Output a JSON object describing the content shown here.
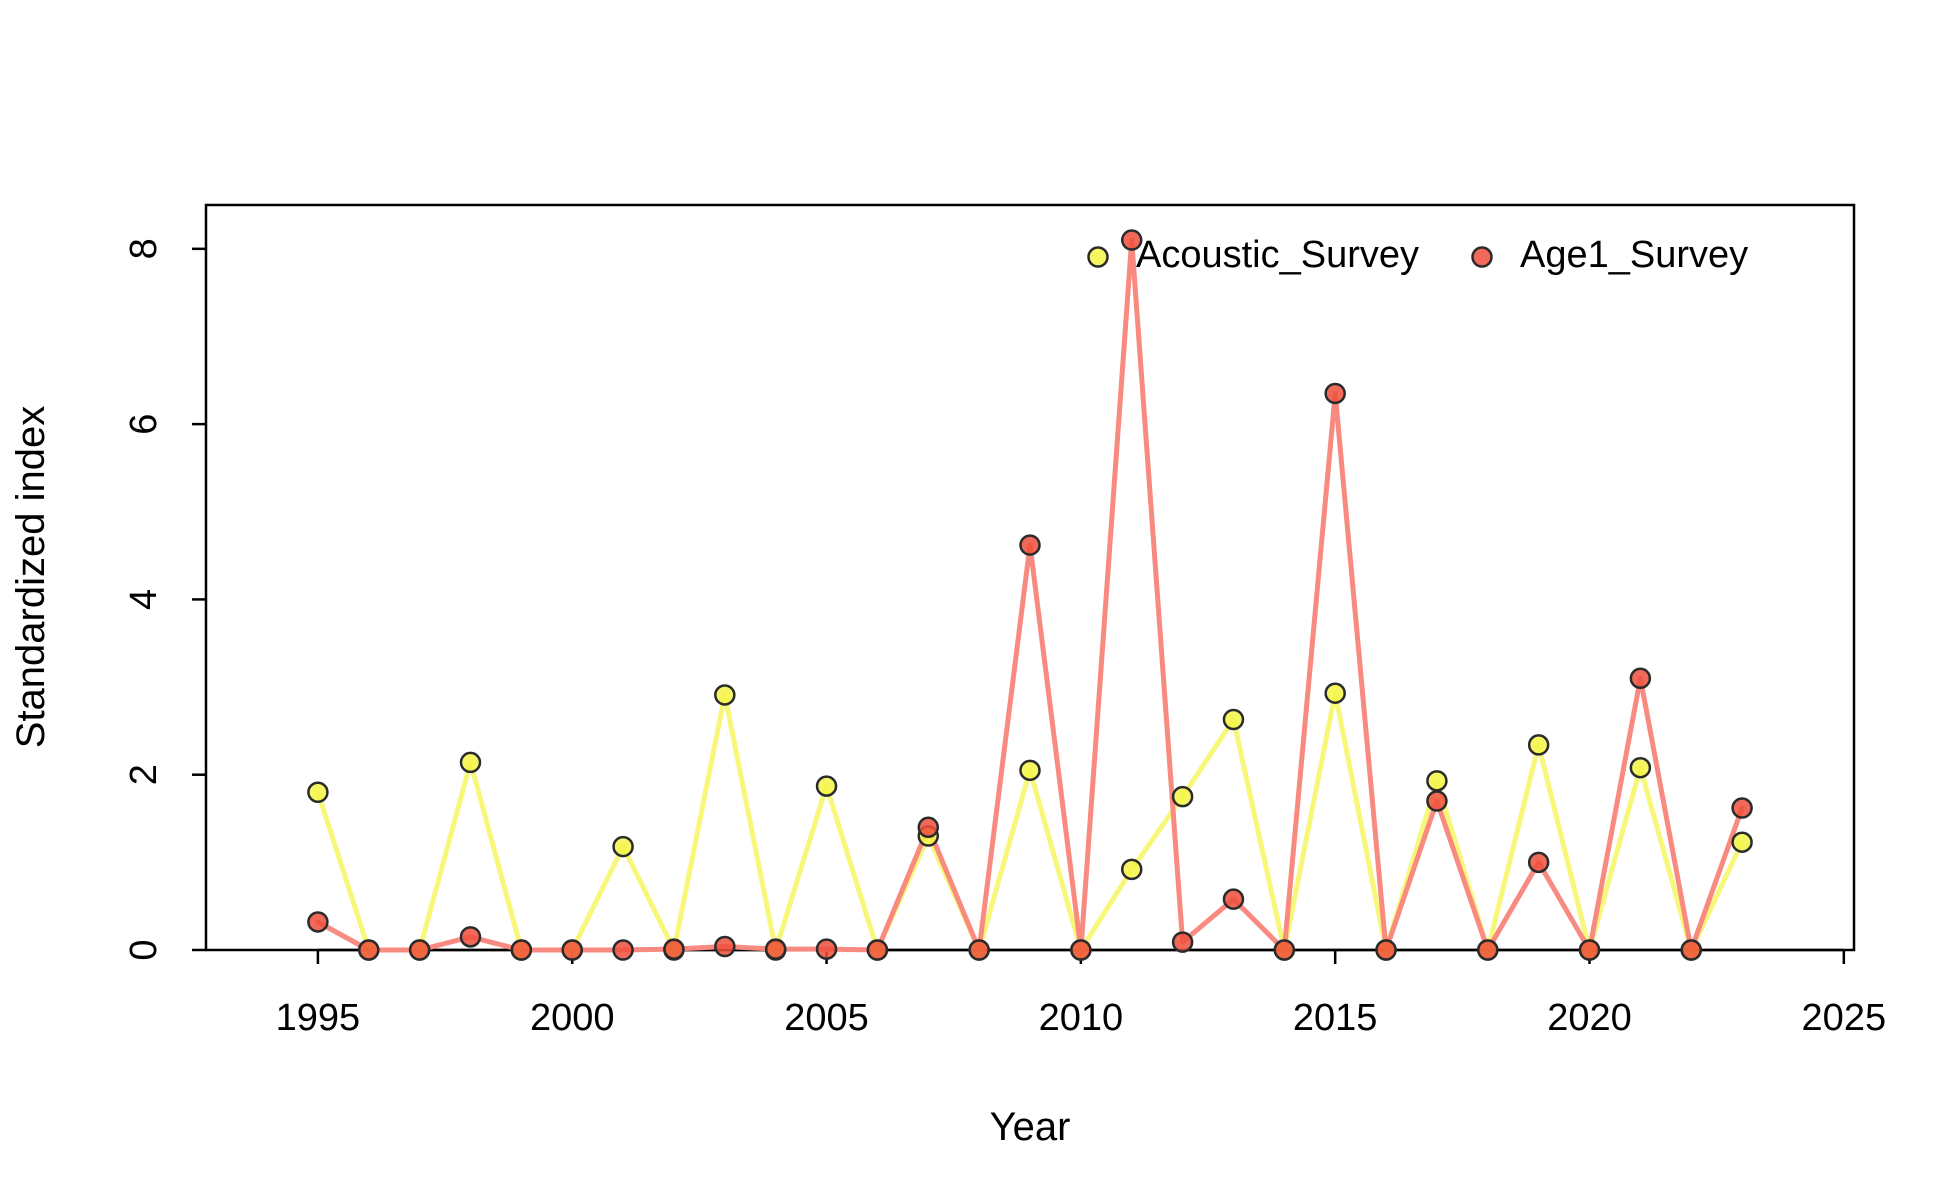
{
  "chart_data": {
    "type": "line",
    "title": "",
    "xlabel": "Year",
    "ylabel": "Standardized index",
    "xlim": [
      1992.8,
      2025.2
    ],
    "ylim": [
      0,
      8.5
    ],
    "x_ticks": [
      1995,
      2000,
      2005,
      2010,
      2015,
      2020,
      2025
    ],
    "y_ticks": [
      0,
      2,
      4,
      6,
      8
    ],
    "legend_position": "top-right",
    "grid": false,
    "series": [
      {
        "name": "Acoustic_Survey",
        "line_color": "#f7f77a",
        "point_color": "#f5f548",
        "points": [
          [
            1995,
            1.8
          ],
          [
            1996,
            0
          ],
          [
            1997,
            0
          ],
          [
            1998,
            2.14
          ],
          [
            1999,
            0
          ],
          [
            2000,
            0
          ],
          [
            2001,
            1.18
          ],
          [
            2002,
            0
          ],
          [
            2003,
            2.91
          ],
          [
            2004,
            0
          ],
          [
            2005,
            1.87
          ],
          [
            2006,
            0
          ],
          [
            2007,
            1.3
          ],
          [
            2008,
            0
          ],
          [
            2009,
            2.05
          ],
          [
            2010,
            0
          ],
          [
            2011,
            0.92
          ],
          [
            2012,
            1.75
          ],
          [
            2013,
            2.63
          ],
          [
            2014,
            0
          ],
          [
            2015,
            2.93
          ],
          [
            2016,
            0
          ],
          [
            2017,
            1.93
          ],
          [
            2018,
            0
          ],
          [
            2019,
            2.34
          ],
          [
            2020,
            0
          ],
          [
            2021,
            2.08
          ],
          [
            2022,
            0
          ],
          [
            2023,
            1.23
          ]
        ]
      },
      {
        "name": "Age1_Survey",
        "line_color": "#f88a80",
        "point_color": "#ef4f3b",
        "points": [
          [
            1995,
            0.32
          ],
          [
            1996,
            0
          ],
          [
            1997,
            0
          ],
          [
            1998,
            0.15
          ],
          [
            1999,
            0
          ],
          [
            2000,
            0
          ],
          [
            2001,
            0
          ],
          [
            2002,
            0.01
          ],
          [
            2003,
            0.04
          ],
          [
            2004,
            0.01
          ],
          [
            2005,
            0.01
          ],
          [
            2006,
            0
          ],
          [
            2007,
            1.4
          ],
          [
            2008,
            0
          ],
          [
            2009,
            4.62
          ],
          [
            2010,
            0
          ],
          [
            2011,
            8.1
          ],
          [
            2012,
            0.09
          ],
          [
            2013,
            0.58
          ],
          [
            2014,
            0
          ],
          [
            2015,
            6.35
          ],
          [
            2016,
            0
          ],
          [
            2017,
            1.7
          ],
          [
            2018,
            0
          ],
          [
            2019,
            1.0
          ],
          [
            2020,
            0
          ],
          [
            2021,
            3.1
          ],
          [
            2022,
            0
          ],
          [
            2023,
            1.62
          ]
        ]
      }
    ]
  }
}
